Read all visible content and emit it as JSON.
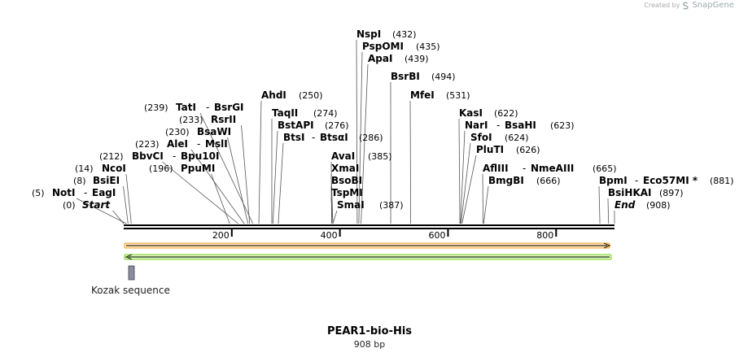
{
  "credit": {
    "prefix": "Created by",
    "brand": "SnapGene"
  },
  "title": "PEAR1-bio-His",
  "length_label": "908 bp",
  "total_bp": 908,
  "ticks": [
    "200",
    "400",
    "600",
    "800"
  ],
  "tick_values": [
    200,
    400,
    600,
    800
  ],
  "features": {
    "kozak_label": "Kozak sequence",
    "kozak_color": "#8a8ea0",
    "cds_color": "#f5a623",
    "green_arrow_color": "#7ed321"
  },
  "sites": [
    {
      "pos_label": "(0)",
      "name": "Start",
      "italic": true,
      "bp": 0
    },
    {
      "pos_label": "(5)",
      "name": "NotI",
      "extra": "EagI",
      "bp": 5
    },
    {
      "pos_label": "(8)",
      "name": "BsiEI",
      "bp": 8
    },
    {
      "pos_label": "(14)",
      "name": "NcoI",
      "bp": 14
    },
    {
      "pos_label": "(212)",
      "name": "BbvCI",
      "extra": "Bpu10I",
      "bp": 212
    },
    {
      "pos_label": "(196)",
      "name": "PpuMI",
      "bp": 196
    },
    {
      "pos_label": "(223)",
      "name": "AleI",
      "extra": "MslI",
      "bp": 223
    },
    {
      "pos_label": "(230)",
      "name": "BsaWI",
      "bp": 230
    },
    {
      "pos_label": "(233)",
      "name": "RsrII",
      "bp": 233
    },
    {
      "pos_label": "(239)",
      "name": "TatI",
      "extra": "BsrGI",
      "bp": 239
    },
    {
      "pos_label": "(250)",
      "name": "AhdI",
      "bp": 250
    },
    {
      "pos_label": "(274)",
      "name": "TaqII",
      "bp": 274
    },
    {
      "pos_label": "(276)",
      "name": "BstAPI",
      "bp": 276
    },
    {
      "pos_label": "(286)",
      "name": "BtsI",
      "extra": "BtsαI",
      "bp": 286
    },
    {
      "pos_label": "(385)",
      "name": "AvaI",
      "bp": 385
    },
    {
      "pos_label": "",
      "name": "XmaI",
      "bp": 387
    },
    {
      "pos_label": "",
      "name": "BsoBI",
      "bp": 385
    },
    {
      "pos_label": "",
      "name": "TspMI",
      "bp": 387
    },
    {
      "pos_label": "(387)",
      "name": "SmaI",
      "bp": 387
    },
    {
      "pos_label": "(432)",
      "name": "NspI",
      "bp": 432
    },
    {
      "pos_label": "(435)",
      "name": "PspOMI",
      "bp": 435
    },
    {
      "pos_label": "(439)",
      "name": "ApaI",
      "bp": 439
    },
    {
      "pos_label": "(494)",
      "name": "BsrBI",
      "bp": 494
    },
    {
      "pos_label": "(531)",
      "name": "MfeI",
      "bp": 531
    },
    {
      "pos_label": "(622)",
      "name": "KasI",
      "bp": 622
    },
    {
      "pos_label": "(623)",
      "name": "NarI",
      "extra": "BsaHI",
      "bp": 623
    },
    {
      "pos_label": "(624)",
      "name": "SfoI",
      "bp": 624
    },
    {
      "pos_label": "(626)",
      "name": "PluTI",
      "bp": 626
    },
    {
      "pos_label": "(665)",
      "name": "AflIII",
      "extra": "NmeAIII",
      "bp": 665
    },
    {
      "pos_label": "(666)",
      "name": "BmgBI",
      "bp": 666
    },
    {
      "pos_label": "(881)",
      "name": "BpmI",
      "extra": "Eco57MI *",
      "bp": 881
    },
    {
      "pos_label": "(897)",
      "name": "BsiHKAI",
      "bp": 897
    },
    {
      "pos_label": "(908)",
      "name": "End",
      "italic": true,
      "bp": 908
    }
  ]
}
